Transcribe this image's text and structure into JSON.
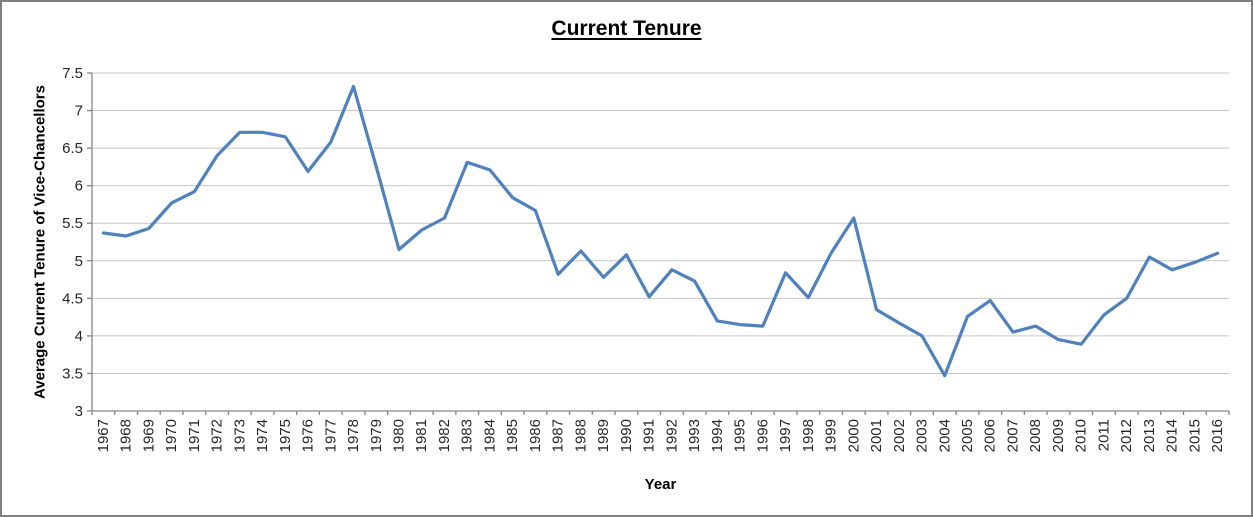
{
  "chart_data": {
    "type": "line",
    "title": "Current Tenure",
    "xlabel": "Year",
    "ylabel": "Average Current Tenure of Vice-Chancellors",
    "legend": "none",
    "grid": "horizontal",
    "ylim": [
      3,
      7.5
    ],
    "ytick_step": 0.5,
    "ytick_labels": [
      "3",
      "3.5",
      "4",
      "4.5",
      "5",
      "5.5",
      "6",
      "6.5",
      "7",
      "7.5"
    ],
    "categories": [
      1967,
      1968,
      1969,
      1970,
      1971,
      1972,
      1973,
      1974,
      1975,
      1976,
      1977,
      1978,
      1979,
      1980,
      1981,
      1982,
      1983,
      1984,
      1985,
      1986,
      1987,
      1988,
      1989,
      1990,
      1991,
      1992,
      1993,
      1994,
      1995,
      1996,
      1997,
      1998,
      1999,
      2000,
      2001,
      2002,
      2003,
      2004,
      2005,
      2006,
      2007,
      2008,
      2009,
      2010,
      2011,
      2012,
      2013,
      2014,
      2015,
      2016
    ],
    "series": [
      {
        "name": "Current Tenure",
        "color": "#4F81BD",
        "values": [
          5.37,
          5.33,
          5.43,
          5.77,
          5.92,
          6.4,
          6.71,
          6.71,
          6.65,
          6.19,
          6.58,
          7.32,
          6.25,
          5.15,
          5.41,
          5.57,
          6.31,
          6.21,
          5.84,
          5.67,
          4.82,
          5.13,
          4.78,
          5.08,
          4.52,
          4.88,
          4.73,
          4.2,
          4.15,
          4.13,
          4.84,
          4.51,
          5.1,
          5.57,
          4.35,
          4.17,
          4.0,
          3.47,
          4.26,
          4.47,
          4.05,
          4.13,
          3.95,
          3.89,
          4.28,
          4.5,
          5.05,
          4.88,
          4.98,
          5.1
        ]
      }
    ],
    "axis_color": "#868686",
    "gridline_color": "#C6C6C6",
    "tick_label_color": "#262626"
  }
}
